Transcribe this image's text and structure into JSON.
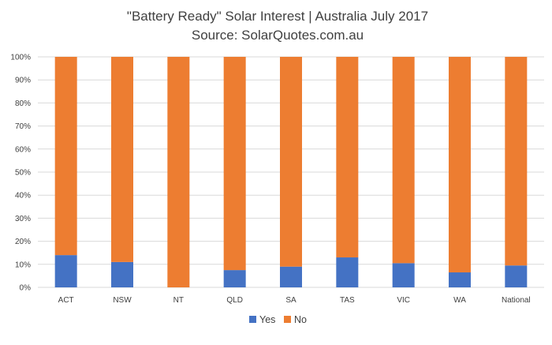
{
  "chart_data": {
    "type": "bar",
    "stacked": "percent",
    "title": "\"Battery Ready\" Solar Interest | Australia July 2017",
    "subtitle": "Source: SolarQuotes.com.au",
    "categories": [
      "ACT",
      "NSW",
      "NT",
      "QLD",
      "SA",
      "TAS",
      "VIC",
      "WA",
      "National"
    ],
    "series": [
      {
        "name": "Yes",
        "color": "#4472c4",
        "values": [
          14,
          11,
          0,
          7.5,
          9,
          13,
          10.5,
          6.5,
          9.5
        ]
      },
      {
        "name": "No",
        "color": "#ed7d31",
        "values": [
          86,
          89,
          100,
          92.5,
          91,
          87,
          89.5,
          93.5,
          90.5
        ]
      }
    ],
    "ylim": [
      0,
      100
    ],
    "yticks": [
      "0%",
      "10%",
      "20%",
      "30%",
      "40%",
      "50%",
      "60%",
      "70%",
      "80%",
      "90%",
      "100%"
    ],
    "xlabel": "",
    "ylabel": "",
    "grid": true,
    "legend_position": "bottom"
  }
}
